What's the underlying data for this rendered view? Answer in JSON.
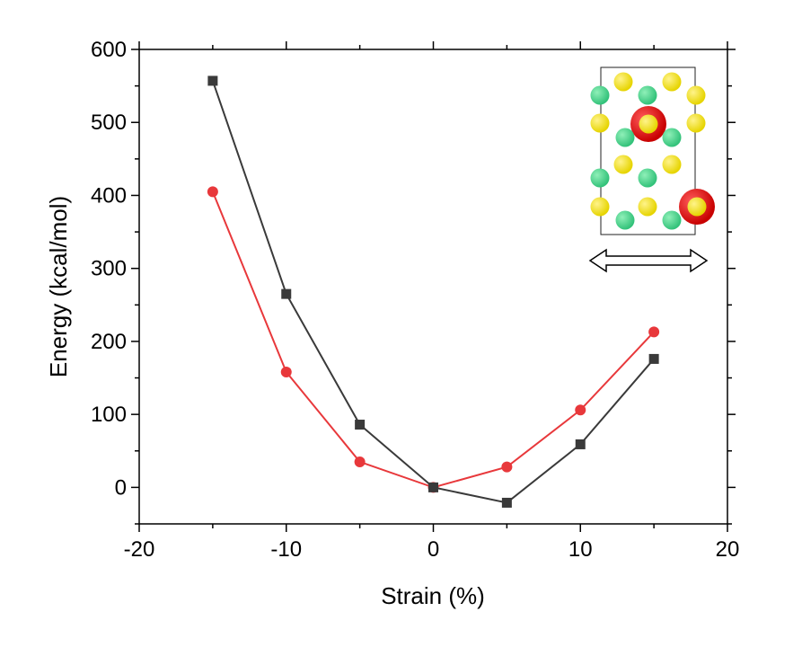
{
  "chart_data": {
    "type": "line",
    "title": "",
    "xlabel": "Strain (%)",
    "ylabel": "Energy (kcal/mol)",
    "xlim": [
      -20,
      20
    ],
    "ylim": [
      -50,
      600
    ],
    "xticks": [
      -20,
      -10,
      0,
      10,
      20
    ],
    "yticks": [
      0,
      100,
      200,
      300,
      400,
      500,
      600
    ],
    "x": [
      -15,
      -10,
      -5,
      0,
      5,
      10,
      15
    ],
    "series": [
      {
        "name": "black-squares",
        "marker": "square",
        "color": "#3a3a3a",
        "values": [
          557,
          265,
          86,
          0,
          -21,
          59,
          176
        ]
      },
      {
        "name": "red-circles",
        "marker": "circle",
        "color": "#e8383b",
        "values": [
          405,
          158,
          35,
          0,
          28,
          106,
          213
        ]
      }
    ],
    "grid": false,
    "legend": "none"
  },
  "inset": {
    "description_icon": "crystal-structure-icon",
    "arrow_icon": "double-headed-arrow-icon",
    "colors": {
      "green": "#33c27a",
      "yellow": "#e6d400",
      "red": "#c80000"
    }
  }
}
